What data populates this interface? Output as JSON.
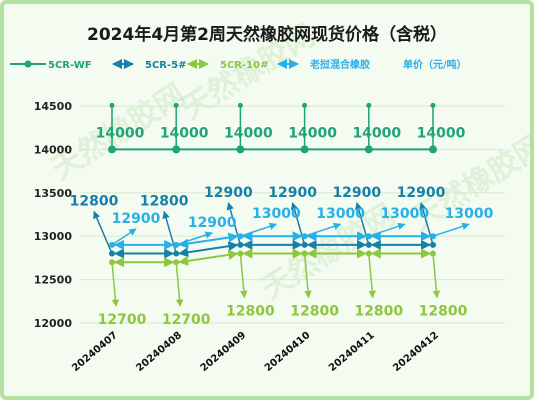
{
  "chart_data": {
    "type": "line",
    "title": "2024年4月第2周天然橡胶网现货价格（含税）",
    "unit_label": "单价（元/吨）",
    "categories": [
      "20240407",
      "20240408",
      "20240409",
      "20240410",
      "20240411",
      "20240412"
    ],
    "ylim": [
      12000,
      14500
    ],
    "yticks": [
      12000,
      12500,
      13000,
      13500,
      14000,
      14500
    ],
    "grid": true,
    "legend_position": "top",
    "series": [
      {
        "name": "5CR-WF",
        "color": "#1fa37a",
        "values": [
          14000,
          14000,
          14000,
          14000,
          14000,
          14000
        ]
      },
      {
        "name": "5CR-5#",
        "color": "#1780a8",
        "values": [
          12800,
          12800,
          12900,
          12900,
          12900,
          12900
        ]
      },
      {
        "name": "5CR-10#",
        "color": "#8dc63f",
        "values": [
          12700,
          12700,
          12800,
          12800,
          12800,
          12800
        ]
      },
      {
        "name": "老挝混合橡胶",
        "color": "#2ab0e8",
        "values": [
          12900,
          12900,
          13000,
          13000,
          13000,
          13000
        ]
      }
    ],
    "watermark": "天然橡胶网"
  }
}
